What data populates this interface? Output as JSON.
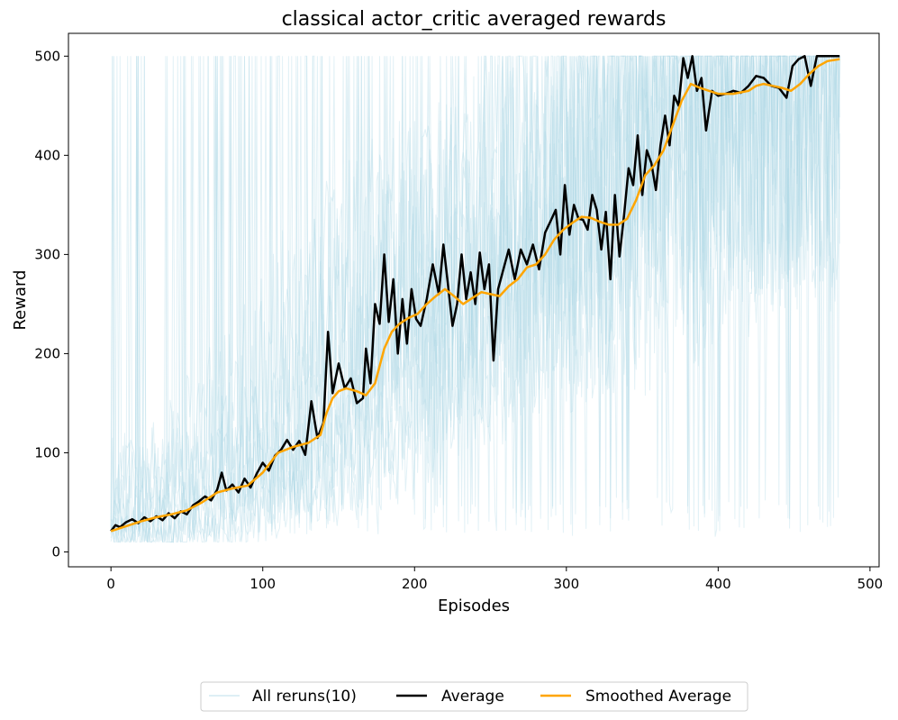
{
  "chart_data": {
    "type": "line",
    "title": "classical actor_critic averaged rewards",
    "xlabel": "Episodes",
    "ylabel": "Reward",
    "xlim": [
      -28,
      506
    ],
    "ylim": [
      -15,
      523
    ],
    "xticks": [
      0,
      100,
      200,
      300,
      400,
      500
    ],
    "yticks": [
      0,
      100,
      200,
      300,
      400,
      500
    ],
    "grid": false,
    "legend_position": "bottom-center",
    "colors": {
      "reruns": "#add8e6",
      "average": "#000000",
      "smoothed": "#ffa500"
    },
    "reruns_count": 10,
    "reruns_shape": [
      [
        0,
        15
      ],
      [
        40,
        40
      ],
      [
        80,
        70
      ],
      [
        120,
        100
      ],
      [
        150,
        140
      ],
      [
        180,
        200
      ],
      [
        220,
        250
      ],
      [
        260,
        290
      ],
      [
        300,
        320
      ],
      [
        340,
        380
      ],
      [
        370,
        440
      ],
      [
        385,
        490
      ],
      [
        400,
        460
      ],
      [
        440,
        470
      ],
      [
        480,
        498
      ]
    ],
    "series": [
      {
        "name": "All reruns(10)",
        "role": "reruns",
        "points": [
          [
            0,
            15
          ],
          [
            480,
            498
          ]
        ]
      },
      {
        "name": "Average",
        "role": "average",
        "points": [
          [
            0,
            21
          ],
          [
            3,
            27
          ],
          [
            6,
            25
          ],
          [
            10,
            30
          ],
          [
            14,
            33
          ],
          [
            18,
            29
          ],
          [
            22,
            35
          ],
          [
            26,
            31
          ],
          [
            30,
            36
          ],
          [
            34,
            32
          ],
          [
            38,
            39
          ],
          [
            42,
            34
          ],
          [
            46,
            41
          ],
          [
            50,
            38
          ],
          [
            54,
            47
          ],
          [
            58,
            51
          ],
          [
            62,
            56
          ],
          [
            66,
            52
          ],
          [
            70,
            63
          ],
          [
            73,
            80
          ],
          [
            76,
            62
          ],
          [
            80,
            68
          ],
          [
            84,
            60
          ],
          [
            88,
            74
          ],
          [
            92,
            65
          ],
          [
            96,
            79
          ],
          [
            100,
            90
          ],
          [
            104,
            82
          ],
          [
            108,
            97
          ],
          [
            112,
            103
          ],
          [
            116,
            113
          ],
          [
            120,
            103
          ],
          [
            124,
            112
          ],
          [
            128,
            98
          ],
          [
            132,
            152
          ],
          [
            136,
            115
          ],
          [
            140,
            130
          ],
          [
            143,
            222
          ],
          [
            146,
            160
          ],
          [
            150,
            190
          ],
          [
            154,
            165
          ],
          [
            158,
            175
          ],
          [
            162,
            150
          ],
          [
            166,
            155
          ],
          [
            168,
            205
          ],
          [
            171,
            170
          ],
          [
            174,
            250
          ],
          [
            177,
            230
          ],
          [
            180,
            300
          ],
          [
            183,
            232
          ],
          [
            186,
            275
          ],
          [
            189,
            200
          ],
          [
            192,
            255
          ],
          [
            195,
            210
          ],
          [
            198,
            265
          ],
          [
            201,
            235
          ],
          [
            204,
            228
          ],
          [
            208,
            255
          ],
          [
            212,
            290
          ],
          [
            216,
            260
          ],
          [
            219,
            310
          ],
          [
            222,
            270
          ],
          [
            225,
            228
          ],
          [
            228,
            250
          ],
          [
            231,
            300
          ],
          [
            234,
            255
          ],
          [
            237,
            282
          ],
          [
            240,
            250
          ],
          [
            243,
            302
          ],
          [
            246,
            265
          ],
          [
            249,
            290
          ],
          [
            252,
            193
          ],
          [
            255,
            265
          ],
          [
            258,
            282
          ],
          [
            262,
            305
          ],
          [
            266,
            275
          ],
          [
            270,
            305
          ],
          [
            274,
            290
          ],
          [
            278,
            310
          ],
          [
            282,
            285
          ],
          [
            286,
            322
          ],
          [
            290,
            335
          ],
          [
            293,
            345
          ],
          [
            296,
            300
          ],
          [
            299,
            370
          ],
          [
            302,
            320
          ],
          [
            305,
            350
          ],
          [
            308,
            336
          ],
          [
            311,
            335
          ],
          [
            314,
            325
          ],
          [
            317,
            360
          ],
          [
            320,
            345
          ],
          [
            323,
            305
          ],
          [
            326,
            343
          ],
          [
            329,
            275
          ],
          [
            332,
            360
          ],
          [
            335,
            298
          ],
          [
            338,
            340
          ],
          [
            341,
            387
          ],
          [
            344,
            370
          ],
          [
            347,
            420
          ],
          [
            350,
            360
          ],
          [
            353,
            405
          ],
          [
            356,
            392
          ],
          [
            359,
            365
          ],
          [
            362,
            410
          ],
          [
            365,
            440
          ],
          [
            368,
            410
          ],
          [
            371,
            460
          ],
          [
            374,
            450
          ],
          [
            377,
            498
          ],
          [
            380,
            478
          ],
          [
            383,
            500
          ],
          [
            386,
            465
          ],
          [
            389,
            478
          ],
          [
            392,
            425
          ],
          [
            396,
            465
          ],
          [
            400,
            460
          ],
          [
            405,
            462
          ],
          [
            410,
            465
          ],
          [
            415,
            463
          ],
          [
            420,
            470
          ],
          [
            425,
            480
          ],
          [
            430,
            478
          ],
          [
            435,
            470
          ],
          [
            440,
            468
          ],
          [
            445,
            458
          ],
          [
            449,
            490
          ],
          [
            453,
            497
          ],
          [
            457,
            500
          ],
          [
            461,
            470
          ],
          [
            465,
            500
          ],
          [
            470,
            500
          ],
          [
            475,
            500
          ],
          [
            480,
            500
          ]
        ]
      },
      {
        "name": "Smoothed Average",
        "role": "smoothed",
        "points": [
          [
            0,
            21
          ],
          [
            10,
            26
          ],
          [
            20,
            31
          ],
          [
            30,
            35
          ],
          [
            40,
            38
          ],
          [
            50,
            42
          ],
          [
            60,
            50
          ],
          [
            70,
            60
          ],
          [
            80,
            64
          ],
          [
            90,
            67
          ],
          [
            100,
            80
          ],
          [
            110,
            100
          ],
          [
            120,
            106
          ],
          [
            130,
            110
          ],
          [
            138,
            118
          ],
          [
            142,
            140
          ],
          [
            146,
            155
          ],
          [
            150,
            162
          ],
          [
            155,
            165
          ],
          [
            162,
            162
          ],
          [
            168,
            158
          ],
          [
            174,
            170
          ],
          [
            180,
            205
          ],
          [
            185,
            222
          ],
          [
            190,
            230
          ],
          [
            196,
            236
          ],
          [
            202,
            240
          ],
          [
            208,
            250
          ],
          [
            214,
            258
          ],
          [
            220,
            265
          ],
          [
            226,
            258
          ],
          [
            232,
            250
          ],
          [
            238,
            256
          ],
          [
            244,
            262
          ],
          [
            250,
            260
          ],
          [
            256,
            258
          ],
          [
            262,
            268
          ],
          [
            268,
            275
          ],
          [
            274,
            287
          ],
          [
            280,
            290
          ],
          [
            286,
            300
          ],
          [
            292,
            315
          ],
          [
            298,
            325
          ],
          [
            304,
            332
          ],
          [
            310,
            338
          ],
          [
            316,
            337
          ],
          [
            322,
            333
          ],
          [
            328,
            330
          ],
          [
            334,
            330
          ],
          [
            340,
            336
          ],
          [
            346,
            355
          ],
          [
            352,
            380
          ],
          [
            358,
            390
          ],
          [
            364,
            405
          ],
          [
            370,
            430
          ],
          [
            376,
            455
          ],
          [
            382,
            472
          ],
          [
            388,
            468
          ],
          [
            394,
            465
          ],
          [
            400,
            462
          ],
          [
            410,
            462
          ],
          [
            420,
            465
          ],
          [
            425,
            470
          ],
          [
            430,
            472
          ],
          [
            436,
            470
          ],
          [
            442,
            468
          ],
          [
            448,
            465
          ],
          [
            454,
            472
          ],
          [
            460,
            482
          ],
          [
            466,
            490
          ],
          [
            472,
            495
          ],
          [
            480,
            497
          ]
        ]
      }
    ]
  }
}
